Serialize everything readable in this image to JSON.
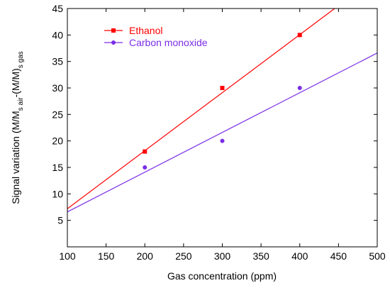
{
  "chart_data": {
    "type": "scatter",
    "xlabel": "Gas concentration (ppm)",
    "ylabel": {
      "prefix": "Signal variation (M/M",
      "sub1": "s air",
      "middle": "-(M/M",
      "close1": ")",
      "sub2": "s gas"
    },
    "xlim": [
      100,
      500
    ],
    "ylim": [
      0,
      45
    ],
    "xticks": [
      100,
      150,
      200,
      250,
      300,
      350,
      400,
      450,
      500
    ],
    "yticks": [
      5,
      10,
      15,
      20,
      25,
      30,
      35,
      40,
      45
    ],
    "grid": false,
    "legend_position": "top-left",
    "series": [
      {
        "name": "Ethanol",
        "color": "#ff0000",
        "marker": "square",
        "x": [
          200,
          300,
          400
        ],
        "y": [
          18,
          30,
          40
        ],
        "fit_line": {
          "x": [
            100,
            445
          ],
          "y": [
            7.2,
            45
          ]
        }
      },
      {
        "name": "Carbon monoxide",
        "color": "#7a2ee6",
        "marker": "circle",
        "x": [
          200,
          300,
          400
        ],
        "y": [
          15,
          20,
          30
        ],
        "fit_line": {
          "x": [
            100,
            500
          ],
          "y": [
            6.6,
            36.6
          ]
        }
      }
    ]
  }
}
